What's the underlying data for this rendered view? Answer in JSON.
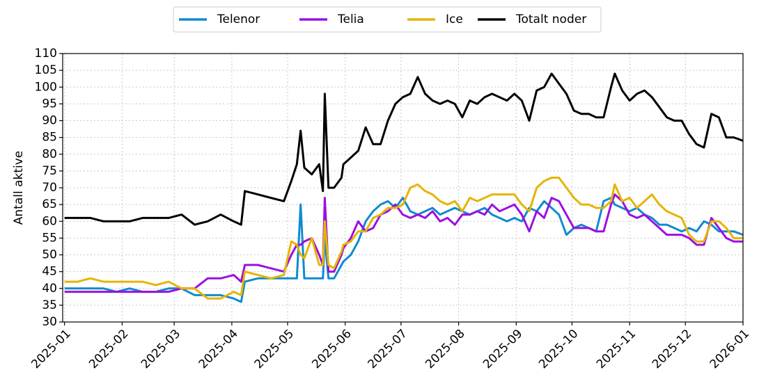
{
  "chart_data": {
    "type": "line",
    "ylabel": "Antall aktive",
    "x": [
      0,
      7,
      14,
      21,
      28,
      35,
      42,
      49,
      56,
      63,
      70,
      77,
      84,
      91,
      95,
      97,
      104,
      111,
      118,
      122,
      125,
      127,
      129,
      133,
      137,
      139,
      140,
      142,
      145,
      149,
      150,
      154,
      158,
      162,
      166,
      170,
      174,
      178,
      182,
      186,
      190,
      194,
      198,
      202,
      206,
      210,
      214,
      218,
      222,
      226,
      230,
      234,
      238,
      242,
      246,
      250,
      254,
      258,
      262,
      266,
      270,
      274,
      278,
      282,
      286,
      290,
      294,
      296,
      300,
      304,
      308,
      312,
      316,
      320,
      324,
      328,
      332,
      336,
      340,
      344,
      348,
      352,
      356,
      360,
      365
    ],
    "series": [
      {
        "name": "Telenor",
        "color": "#0f8bd0",
        "values": [
          40,
          40,
          40,
          40,
          39,
          40,
          39,
          39,
          40,
          40,
          38,
          38,
          38,
          37,
          36,
          42,
          43,
          43,
          43,
          43,
          43,
          65,
          43,
          43,
          43,
          43,
          55,
          43,
          43,
          47,
          48,
          50,
          54,
          60,
          63,
          65,
          66,
          64,
          67,
          63,
          62,
          63,
          64,
          62,
          63,
          64,
          63,
          62,
          63,
          64,
          62,
          61,
          60,
          61,
          60,
          64,
          63,
          66,
          64,
          62,
          56,
          58,
          59,
          58,
          57,
          66,
          67,
          65,
          64,
          63,
          64,
          62,
          61,
          59,
          59,
          58,
          57,
          58,
          57,
          60,
          59,
          57,
          57,
          57,
          56
        ]
      },
      {
        "name": "Telia",
        "color": "#9b10e0",
        "values": [
          39,
          39,
          39,
          39,
          39,
          39,
          39,
          39,
          39,
          40,
          40,
          43,
          43,
          44,
          42,
          47,
          47,
          46,
          45,
          50,
          53,
          53,
          54,
          55,
          50,
          47,
          67,
          45,
          45,
          50,
          52,
          55,
          60,
          57,
          58,
          62,
          63,
          65,
          62,
          61,
          62,
          61,
          63,
          60,
          61,
          59,
          62,
          62,
          63,
          62,
          65,
          63,
          64,
          65,
          62,
          57,
          63,
          61,
          67,
          66,
          62,
          58,
          58,
          58,
          57,
          57,
          65,
          68,
          66,
          62,
          61,
          62,
          60,
          58,
          56,
          56,
          56,
          55,
          53,
          53,
          61,
          58,
          55,
          54,
          54
        ]
      },
      {
        "name": "Ice",
        "color": "#e6b400",
        "values": [
          42,
          42,
          43,
          42,
          42,
          42,
          42,
          41,
          42,
          40,
          40,
          37,
          37,
          39,
          38,
          45,
          44,
          43,
          44,
          54,
          53,
          50,
          49,
          55,
          47,
          47,
          60,
          47,
          46,
          51,
          53,
          54,
          57,
          57,
          61,
          62,
          64,
          64,
          65,
          70,
          71,
          69,
          68,
          66,
          65,
          66,
          63,
          67,
          66,
          67,
          68,
          68,
          68,
          68,
          65,
          63,
          70,
          72,
          73,
          73,
          70,
          67,
          65,
          65,
          64,
          64,
          66,
          71,
          66,
          67,
          64,
          66,
          68,
          65,
          63,
          62,
          61,
          56,
          54,
          54,
          60,
          60,
          58,
          55,
          55
        ]
      },
      {
        "name": "Totalt noder",
        "color": "#000000",
        "values": [
          61,
          61,
          61,
          60,
          60,
          60,
          61,
          61,
          61,
          62,
          59,
          60,
          62,
          60,
          59,
          69,
          68,
          67,
          66,
          72,
          77,
          87,
          76,
          74,
          77,
          69,
          98,
          70,
          70,
          73,
          77,
          79,
          81,
          88,
          83,
          83,
          90,
          95,
          97,
          98,
          103,
          98,
          96,
          95,
          96,
          95,
          91,
          96,
          95,
          97,
          98,
          97,
          96,
          98,
          96,
          90,
          99,
          100,
          104,
          101,
          98,
          93,
          92,
          92,
          91,
          91,
          100,
          104,
          99,
          96,
          98,
          99,
          97,
          94,
          91,
          90,
          90,
          86,
          83,
          82,
          92,
          91,
          85,
          85,
          84
        ]
      }
    ],
    "xlim": [
      -1,
      365
    ],
    "xticks": [
      {
        "value": 0,
        "label": "2025-01"
      },
      {
        "value": 31,
        "label": "2025-02"
      },
      {
        "value": 59,
        "label": "2025-03"
      },
      {
        "value": 90,
        "label": "2025-04"
      },
      {
        "value": 120,
        "label": "2025-05"
      },
      {
        "value": 151,
        "label": "2025-06"
      },
      {
        "value": 181,
        "label": "2025-07"
      },
      {
        "value": 212,
        "label": "2025-08"
      },
      {
        "value": 243,
        "label": "2025-09"
      },
      {
        "value": 273,
        "label": "2025-10"
      },
      {
        "value": 304,
        "label": "2025-11"
      },
      {
        "value": 334,
        "label": "2025-12"
      },
      {
        "value": 365,
        "label": "2026-01"
      }
    ],
    "ylim": [
      30,
      110
    ],
    "yticks": [
      30,
      35,
      40,
      45,
      50,
      55,
      60,
      65,
      70,
      75,
      80,
      85,
      90,
      95,
      100,
      105,
      110
    ],
    "grid": true,
    "legend": "top"
  }
}
